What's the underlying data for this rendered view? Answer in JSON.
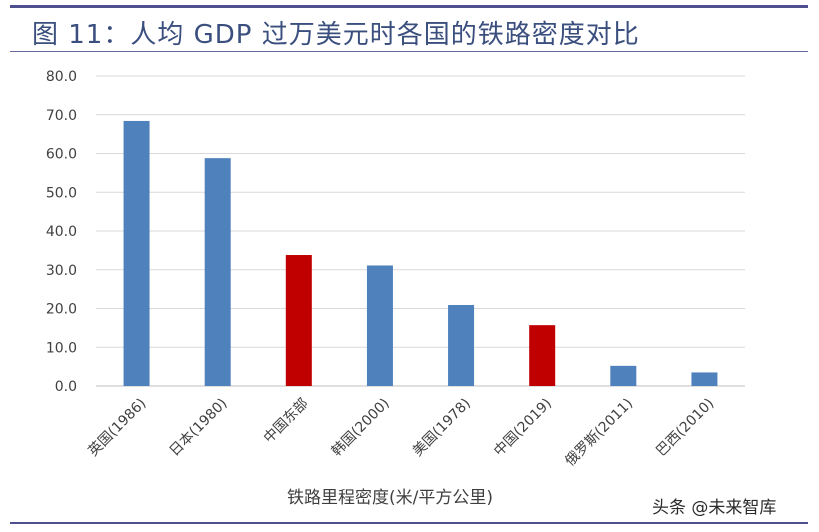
{
  "header": {
    "title": "图 11：人均 GDP 过万美元时各国的铁路密度对比"
  },
  "watermark": "头条 @未来智库",
  "colors": {
    "bar_default": "#4f81bd",
    "bar_highlight": "#c00000",
    "grid": "#d9d9d9",
    "title": "#3a4f7e"
  },
  "chart_data": {
    "type": "bar",
    "title": "",
    "xlabel": "铁路里程密度(米/平方公里)",
    "ylabel": "",
    "ylim": [
      0,
      80
    ],
    "ytick_step": 10,
    "ytick_labels": [
      "0.0",
      "10.0",
      "20.0",
      "30.0",
      "40.0",
      "50.0",
      "60.0",
      "70.0",
      "80.0"
    ],
    "grid": true,
    "categories": [
      "英国(1986)",
      "日本(1980)",
      "中国东部",
      "韩国(2000)",
      "美国(1978)",
      "中国(2019)",
      "俄罗斯(2011)",
      "巴西(2010)"
    ],
    "values": [
      68.4,
      58.8,
      33.8,
      31.1,
      20.9,
      15.7,
      5.2,
      3.5
    ],
    "highlighted": [
      false,
      false,
      true,
      false,
      false,
      true,
      false,
      false
    ]
  }
}
